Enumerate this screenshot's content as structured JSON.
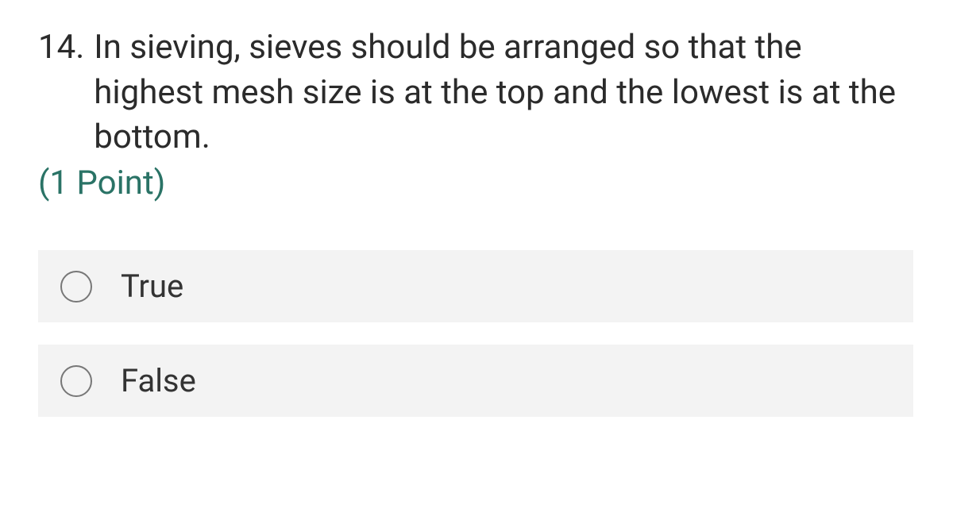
{
  "question": {
    "number": "14.",
    "text": "In sieving, sieves should be arranged so that the highest mesh size is at the top and the lowest is at the bottom.",
    "points_label": "(1 Point)"
  },
  "options": [
    {
      "label": "True"
    },
    {
      "label": "False"
    }
  ],
  "colors": {
    "text": "#2b2b2b",
    "points": "#2a7366",
    "option_bg": "#f3f3f3",
    "radio_border": "#777777",
    "background": "#ffffff"
  },
  "typography": {
    "question_fontsize": 42,
    "option_fontsize": 40,
    "font_family": "Segoe UI"
  }
}
